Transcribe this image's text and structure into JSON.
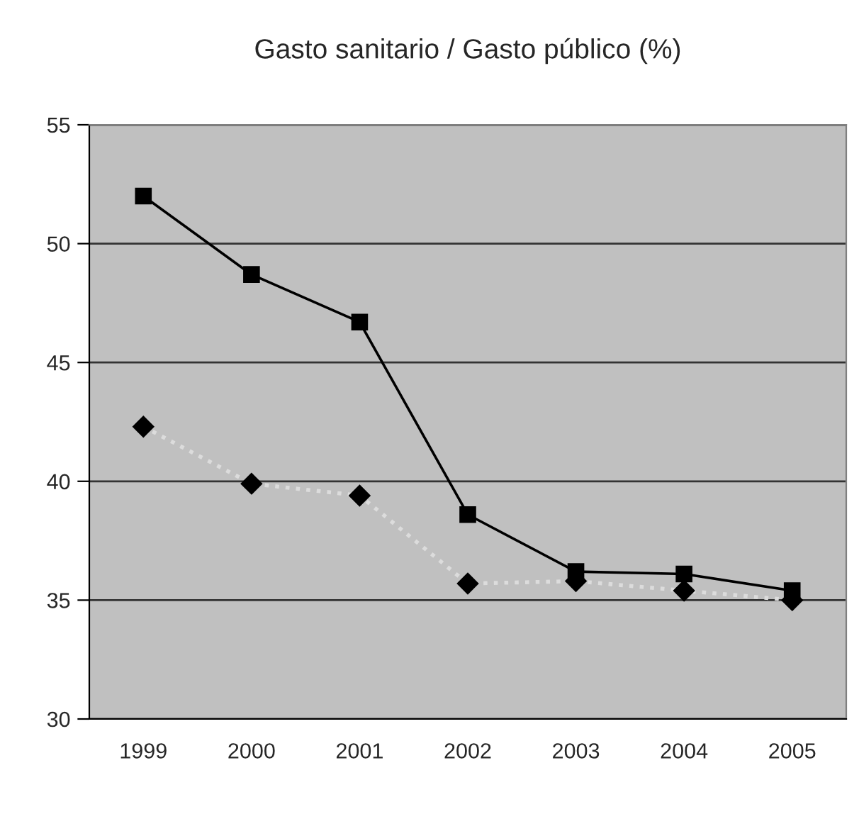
{
  "chart_data": {
    "type": "line",
    "title": "Gasto sanitario / Gasto público (%)",
    "categories": [
      "1999",
      "2000",
      "2001",
      "2002",
      "2003",
      "2004",
      "2005"
    ],
    "series": [
      {
        "color": "#000000",
        "marker": "square",
        "line_style": "solid",
        "values": [
          52.0,
          48.7,
          46.7,
          38.6,
          36.2,
          36.1,
          35.4
        ]
      },
      {
        "color": "#dcdcdc",
        "marker": "diamond",
        "line_style": "dotted",
        "values": [
          42.3,
          39.9,
          39.4,
          35.7,
          35.8,
          35.4,
          35.0
        ]
      }
    ],
    "ylim": [
      30,
      55
    ],
    "yticks": [
      30,
      35,
      40,
      45,
      50,
      55
    ],
    "grid": "y"
  }
}
